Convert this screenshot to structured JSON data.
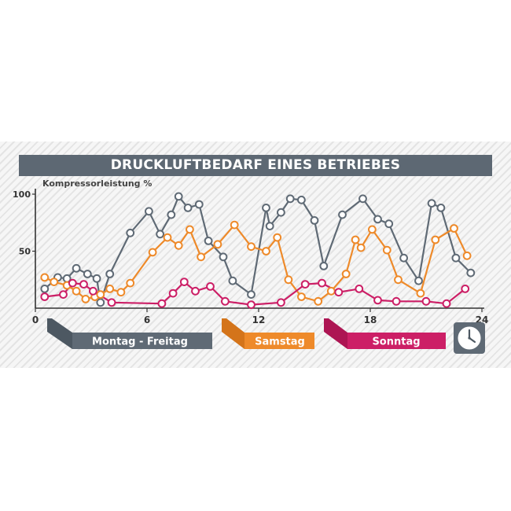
{
  "title": "DRUCKLUFTBEDARF EINES BETRIEBES",
  "chart_data": {
    "type": "line",
    "ylabel": "Kompressorleistung %",
    "xlim": [
      0,
      24
    ],
    "ylim": [
      0,
      100
    ],
    "x_ticks": [
      "0",
      "6",
      "12",
      "18",
      "24"
    ],
    "y_ticks": [
      "50",
      "100"
    ],
    "grid": false,
    "legend_position": "bottom",
    "series": [
      {
        "name": "Montag - Freitag",
        "color": "#5f6a75",
        "points": [
          [
            0.5,
            17
          ],
          [
            1.2,
            27
          ],
          [
            1.7,
            26
          ],
          [
            2.2,
            35
          ],
          [
            2.8,
            30
          ],
          [
            3.3,
            26
          ],
          [
            3.5,
            5
          ],
          [
            4.0,
            30
          ],
          [
            5.1,
            66
          ],
          [
            6.1,
            85
          ],
          [
            6.7,
            65
          ],
          [
            7.3,
            82
          ],
          [
            7.7,
            98
          ],
          [
            8.2,
            88
          ],
          [
            8.8,
            91
          ],
          [
            9.3,
            59
          ],
          [
            10.1,
            45
          ],
          [
            10.6,
            24
          ],
          [
            11.6,
            12
          ],
          [
            12.4,
            88
          ],
          [
            12.6,
            72
          ],
          [
            13.2,
            84
          ],
          [
            13.7,
            96
          ],
          [
            14.3,
            95
          ],
          [
            15.0,
            77
          ],
          [
            15.5,
            37
          ],
          [
            16.5,
            82
          ],
          [
            17.6,
            96
          ],
          [
            18.4,
            78
          ],
          [
            19.0,
            74
          ],
          [
            19.8,
            44
          ],
          [
            20.6,
            24
          ],
          [
            21.3,
            92
          ],
          [
            21.8,
            88
          ],
          [
            22.6,
            44
          ],
          [
            23.4,
            31
          ]
        ]
      },
      {
        "name": "Samstag",
        "color": "#ee8a2a",
        "points": [
          [
            0.5,
            27
          ],
          [
            1.0,
            23
          ],
          [
            1.7,
            20
          ],
          [
            2.2,
            15
          ],
          [
            2.7,
            8
          ],
          [
            3.2,
            10
          ],
          [
            3.5,
            12
          ],
          [
            4.0,
            17
          ],
          [
            4.6,
            14
          ],
          [
            5.1,
            22
          ],
          [
            6.3,
            49
          ],
          [
            7.1,
            62
          ],
          [
            7.7,
            55
          ],
          [
            8.3,
            69
          ],
          [
            8.9,
            45
          ],
          [
            9.8,
            56
          ],
          [
            10.7,
            73
          ],
          [
            11.6,
            54
          ],
          [
            12.4,
            50
          ],
          [
            13.0,
            62
          ],
          [
            13.6,
            25
          ],
          [
            14.3,
            10
          ],
          [
            15.2,
            6
          ],
          [
            15.9,
            15
          ],
          [
            16.7,
            30
          ],
          [
            17.2,
            60
          ],
          [
            17.5,
            53
          ],
          [
            18.1,
            69
          ],
          [
            18.9,
            51
          ],
          [
            19.5,
            25
          ],
          [
            20.7,
            13
          ],
          [
            21.5,
            60
          ],
          [
            22.5,
            70
          ],
          [
            23.2,
            46
          ]
        ]
      },
      {
        "name": "Sonntag",
        "color": "#cc1f66",
        "points": [
          [
            0.5,
            10
          ],
          [
            1.5,
            12
          ],
          [
            2.0,
            22
          ],
          [
            2.6,
            21
          ],
          [
            3.1,
            15
          ],
          [
            4.1,
            5
          ],
          [
            6.8,
            4
          ],
          [
            7.4,
            13
          ],
          [
            8.0,
            23
          ],
          [
            8.6,
            15
          ],
          [
            9.4,
            19
          ],
          [
            10.2,
            6
          ],
          [
            11.6,
            3
          ],
          [
            13.2,
            5
          ],
          [
            14.5,
            21
          ],
          [
            15.4,
            22
          ],
          [
            16.3,
            14
          ],
          [
            17.4,
            17
          ],
          [
            18.4,
            7
          ],
          [
            19.4,
            6
          ],
          [
            21.0,
            6
          ],
          [
            22.1,
            4
          ],
          [
            23.1,
            17
          ]
        ]
      }
    ]
  },
  "legend": {
    "weekday": "Montag - Freitag",
    "saturday": "Samstag",
    "sunday": "Sonntag"
  },
  "icons": [
    "clock-icon"
  ]
}
